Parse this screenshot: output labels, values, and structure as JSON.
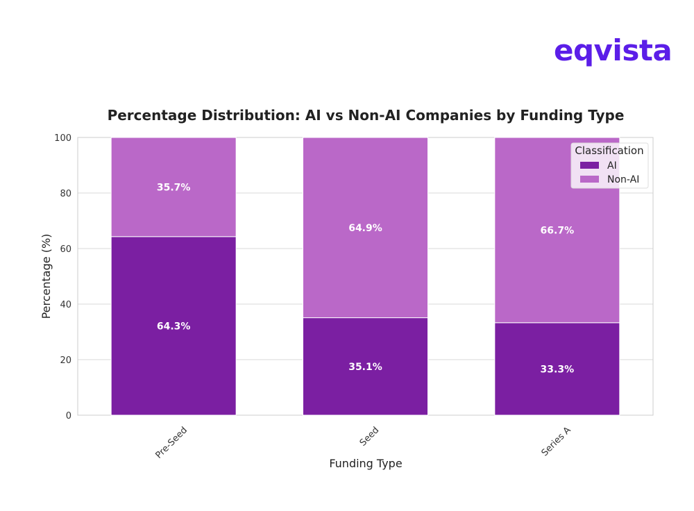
{
  "logo": {
    "text": "eqvista",
    "color": "#5b1ee8"
  },
  "chart_data": {
    "type": "bar",
    "stacked": true,
    "title": "Percentage Distribution: AI vs Non-AI Companies by Funding Type",
    "xlabel": "Funding Type",
    "ylabel": "Percentage (%)",
    "ylim": [
      0,
      100
    ],
    "yticks": [
      0,
      20,
      40,
      60,
      80,
      100
    ],
    "grid": true,
    "categories": [
      "Pre-Seed",
      "Seed",
      "Series A"
    ],
    "series": [
      {
        "name": "AI",
        "color": "#7b1fa2",
        "values": [
          64.3,
          35.1,
          33.3
        ],
        "labels": [
          "64.3%",
          "35.1%",
          "33.3%"
        ]
      },
      {
        "name": "Non-AI",
        "color": "#ba68c8",
        "values": [
          35.7,
          64.9,
          66.7
        ],
        "labels": [
          "35.7%",
          "64.9%",
          "66.7%"
        ]
      }
    ],
    "legend": {
      "title": "Classification",
      "placement": "top-right"
    }
  }
}
